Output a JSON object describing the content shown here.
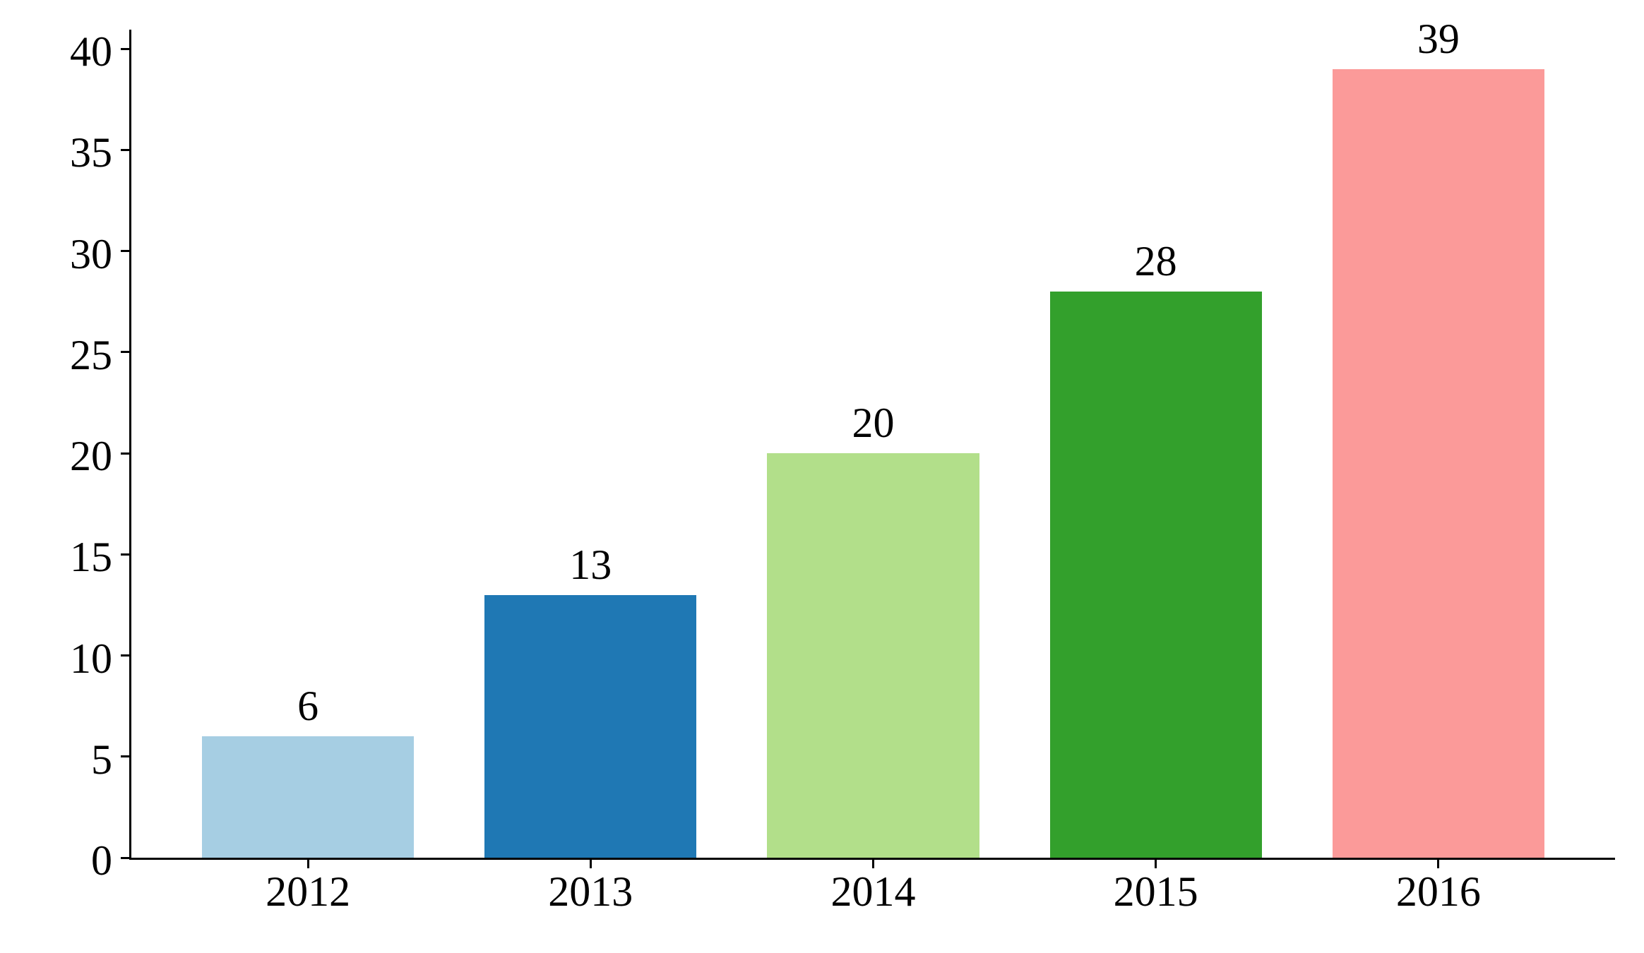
{
  "chart_data": {
    "type": "bar",
    "title": "",
    "xlabel": "",
    "ylabel": "",
    "categories": [
      "2012",
      "2013",
      "2014",
      "2015",
      "2016"
    ],
    "values": [
      6,
      13,
      20,
      28,
      39
    ],
    "bar_value_labels": [
      "6",
      "13",
      "20",
      "28",
      "39"
    ],
    "bar_colors": [
      "#a6cee3",
      "#1f78b4",
      "#b2df8a",
      "#33a02c",
      "#fb9a99"
    ],
    "yticks": [
      0,
      5,
      10,
      15,
      20,
      25,
      30,
      35,
      40
    ],
    "ytick_labels": [
      "0",
      "5",
      "10",
      "15",
      "20",
      "25",
      "30",
      "35",
      "40"
    ],
    "ylim": [
      0,
      40.95
    ],
    "xlim": [
      -0.625,
      4.625
    ],
    "bar_width_units": 0.75,
    "grid": false,
    "legend": null,
    "axis_color": "#000000",
    "text_color": "#000000",
    "background_color": "#ffffff"
  }
}
